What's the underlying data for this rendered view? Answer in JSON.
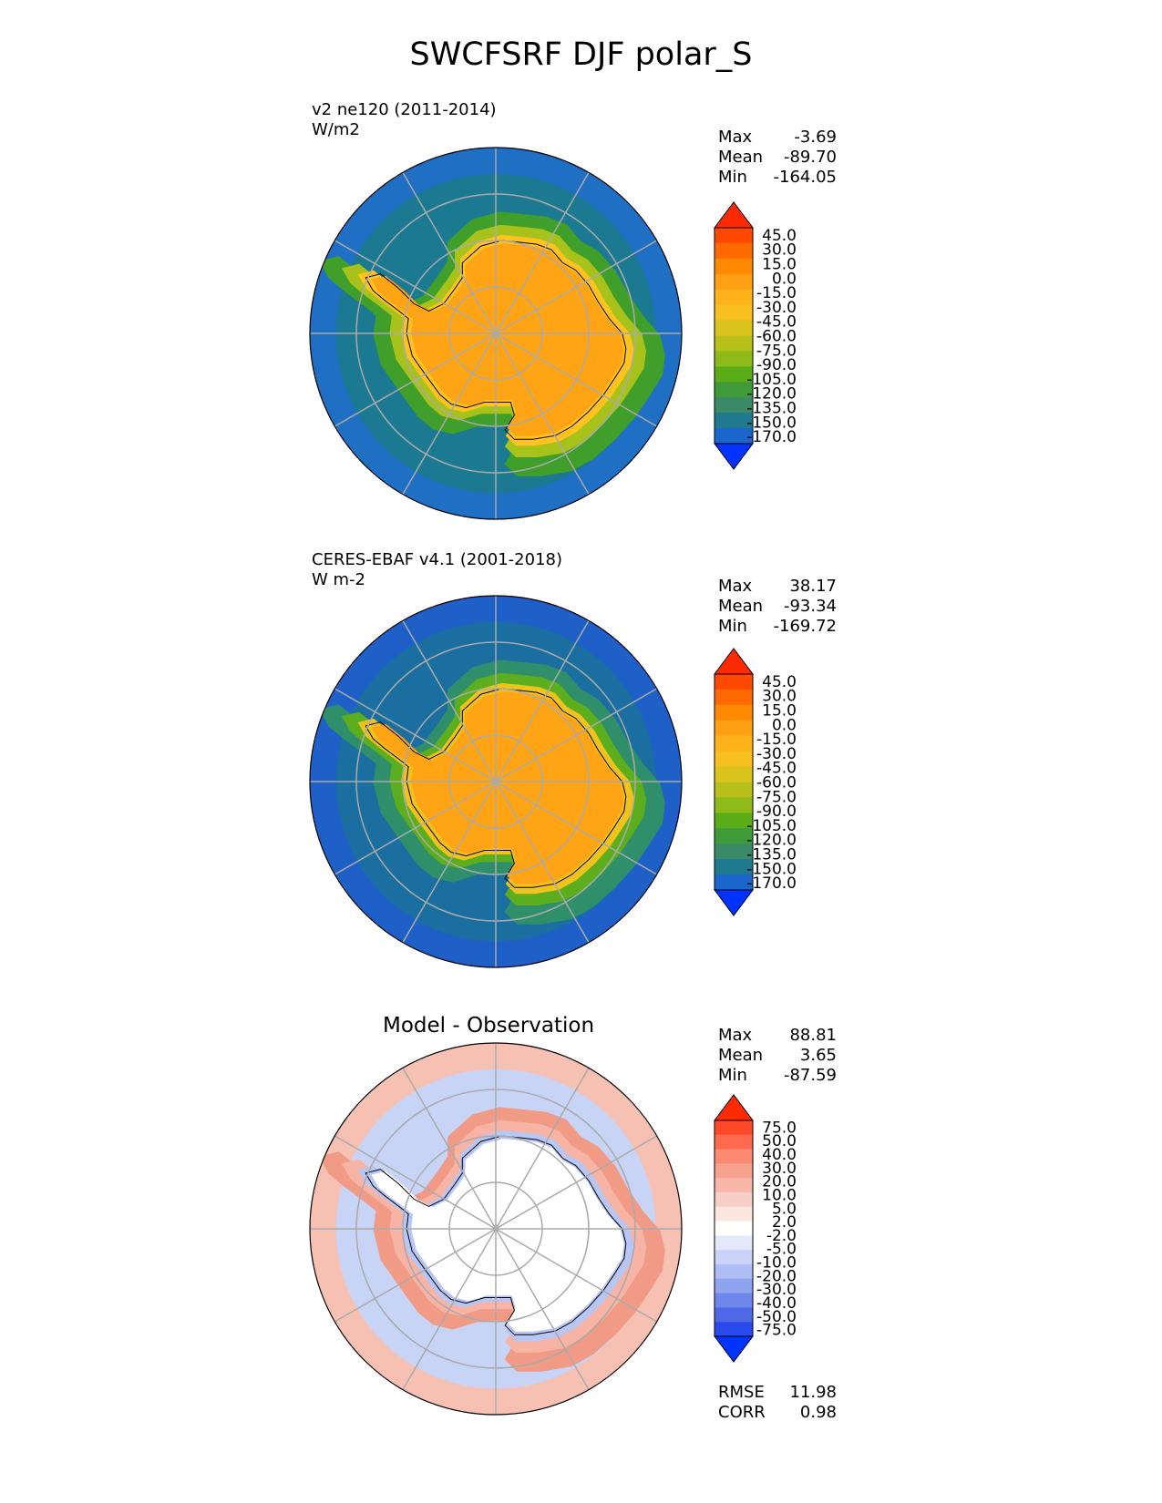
{
  "title": "SWCFSRF DJF polar_S",
  "chart_data": [
    {
      "type": "heatmap",
      "projection": "south polar stereographic",
      "label": "v2 ne120 (2011-2014)",
      "units": "W/m2",
      "stats": {
        "max": "-3.69",
        "mean": "-89.70",
        "min": "-164.05"
      },
      "colorbar": {
        "levels": [
          "45.0",
          "30.0",
          "15.0",
          "0.0",
          "-15.0",
          "-30.0",
          "-45.0",
          "-60.0",
          "-75.0",
          "-90.0",
          "-105.0",
          "-120.0",
          "-135.0",
          "-150.0",
          "-170.0"
        ],
        "colors": [
          "#ff2a00",
          "#ff4800",
          "#ff6a00",
          "#ff8a00",
          "#ffa015",
          "#ffb31a",
          "#f7c01f",
          "#d9c41d",
          "#b9c019",
          "#8fbb18",
          "#5aad17",
          "#3f9a3a",
          "#3a8a68",
          "#1f7a90",
          "#1a66cc",
          "#0033ff"
        ],
        "extend": "both"
      },
      "fields": {
        "land": "#ffa515",
        "coast": "#ffc21f",
        "ring1": "#a7c21a",
        "ring2": "#3f9f2a",
        "ocean": "#1b7a92",
        "outer": "#1f6fc4"
      }
    },
    {
      "type": "heatmap",
      "projection": "south polar stereographic",
      "label": "CERES-EBAF v4.1 (2001-2018)",
      "units": "W m-2",
      "stats": {
        "max": "38.17",
        "mean": "-93.34",
        "min": "-169.72"
      },
      "colorbar": {
        "levels": [
          "45.0",
          "30.0",
          "15.0",
          "0.0",
          "-15.0",
          "-30.0",
          "-45.0",
          "-60.0",
          "-75.0",
          "-90.0",
          "-105.0",
          "-120.0",
          "-135.0",
          "-150.0",
          "-170.0"
        ],
        "colors": [
          "#ff2a00",
          "#ff4800",
          "#ff6a00",
          "#ff8a00",
          "#ffa015",
          "#ffb31a",
          "#f7c01f",
          "#d9c41d",
          "#b9c019",
          "#8fbb18",
          "#5aad17",
          "#3f9a3a",
          "#3a8a68",
          "#1f7a90",
          "#1a66cc",
          "#0033ff"
        ],
        "extend": "both"
      },
      "fields": {
        "land": "#ffa515",
        "coast": "#f0c21e",
        "ring1": "#5cae1e",
        "ring2": "#2f8f6a",
        "ocean": "#1a6ea0",
        "outer": "#1f5fc8"
      }
    },
    {
      "type": "heatmap",
      "projection": "south polar stereographic",
      "title": "Model - Observation",
      "stats": {
        "max": "88.81",
        "mean": "3.65",
        "min": "-87.59"
      },
      "colorbar": {
        "levels": [
          "75.0",
          "50.0",
          "40.0",
          "30.0",
          "20.0",
          "10.0",
          "5.0",
          "2.0",
          "-2.0",
          "-5.0",
          "-10.0",
          "-20.0",
          "-30.0",
          "-40.0",
          "-50.0",
          "-75.0"
        ],
        "colors": [
          "#ff2a00",
          "#ff4a2a",
          "#ff6a4f",
          "#fb8a72",
          "#f7a18f",
          "#f6b7a9",
          "#f8cfc6",
          "#fbe6e2",
          "#ffffff",
          "#e3e8fb",
          "#c9d3f7",
          "#aebdf3",
          "#8fa3ef",
          "#6f87ea",
          "#4e68e6",
          "#2a49ec",
          "#0033ff"
        ],
        "extend": "both"
      },
      "fields": {
        "land": "#ffffff",
        "coast": "#b8c6f4",
        "ring1": "#f7b3a3",
        "ring2": "#f19a86",
        "ocean": "#c8d4f6",
        "outer": "#f6c0b3"
      },
      "metrics": {
        "rmse_label": "RMSE",
        "rmse": "11.98",
        "corr_label": "CORR",
        "corr": "0.98"
      }
    }
  ]
}
